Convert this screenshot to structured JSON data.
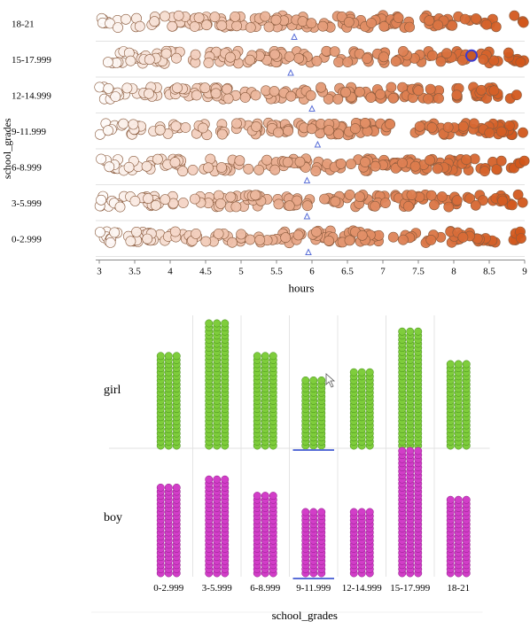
{
  "chart_data": [
    {
      "type": "scatter",
      "subtype": "dot-strip-plot",
      "xlabel": "hours",
      "ylabel": "school_grades",
      "xlim": [
        3,
        9
      ],
      "x_ticks": [
        "3",
        "3.5",
        "4",
        "4.5",
        "5",
        "5.5",
        "6",
        "6.5",
        "7",
        "7.5",
        "8",
        "8.5",
        "9"
      ],
      "color_scale": {
        "low": "#ffffff",
        "high": "#d2561a",
        "stroke": "#8a5a3c"
      },
      "categories": [
        "18-21",
        "15-17.999",
        "12-14.999",
        "9-11.999",
        "6-8.999",
        "3-5.999",
        "0-2.999"
      ],
      "mean_markers": [
        5.75,
        5.7,
        6.0,
        6.08,
        5.93,
        5.93,
        5.95
      ],
      "highlight": {
        "category": "15-17.999",
        "x": 8.25
      },
      "grid": true
    },
    {
      "type": "bar",
      "subtype": "stacked-dot-columns",
      "xlabel": "school_grades",
      "categories": [
        "0-2.999",
        "3-5.999",
        "6-8.999",
        "9-11.999",
        "12-14.999",
        "15-17.999",
        "18-21"
      ],
      "row_labels": [
        "girl",
        "boy"
      ],
      "series": [
        {
          "name": "girl",
          "color": "#7fcd3c",
          "values": [
            23,
            31,
            23,
            17,
            19,
            29,
            21
          ]
        },
        {
          "name": "boy",
          "color": "#d23ec8",
          "values": [
            22,
            24,
            20,
            16,
            16,
            31,
            19
          ]
        }
      ],
      "selected_category": "9-11.999",
      "grid": true
    }
  ]
}
